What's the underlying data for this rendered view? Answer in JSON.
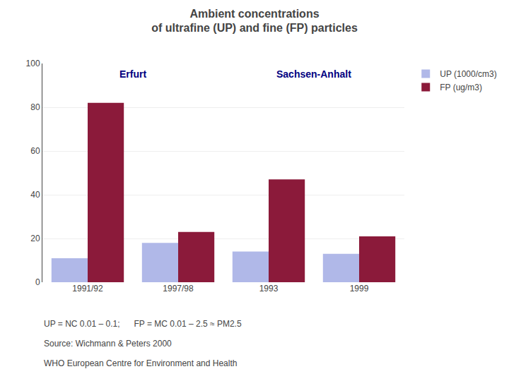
{
  "chart_data": {
    "type": "bar",
    "title": "Ambient concentrations\nof ultrafine (UP) and fine (FP) particles",
    "categories": [
      "1991/92",
      "1997/98",
      "1993",
      "1999"
    ],
    "series": [
      {
        "name": "UP (1000/cm3)",
        "color": "#b0b8e8",
        "values": [
          11,
          18,
          14,
          13
        ]
      },
      {
        "name": "FP (ug/m3)",
        "color": "#8b1a3a",
        "values": [
          82,
          23,
          47,
          21
        ]
      }
    ],
    "ylim": [
      0,
      100
    ],
    "yticks": [
      0,
      20,
      40,
      60,
      80,
      100
    ],
    "grid": true,
    "legend": "upper right",
    "annotations": [
      {
        "text": "Erfurt",
        "categories": [
          "1991/92",
          "1997/98"
        ]
      },
      {
        "text": "Sachsen-Anhalt",
        "categories": [
          "1993",
          "1999"
        ]
      },
      {
        "text": "UP = NC 0.01 – 0.1;      FP = MC 0.01 – 2.5 ≈ PM2.5"
      },
      {
        "text": "Source: Wichmann & Peters 2000"
      },
      {
        "text": "WHO European Centre for Environment and Health"
      }
    ]
  }
}
